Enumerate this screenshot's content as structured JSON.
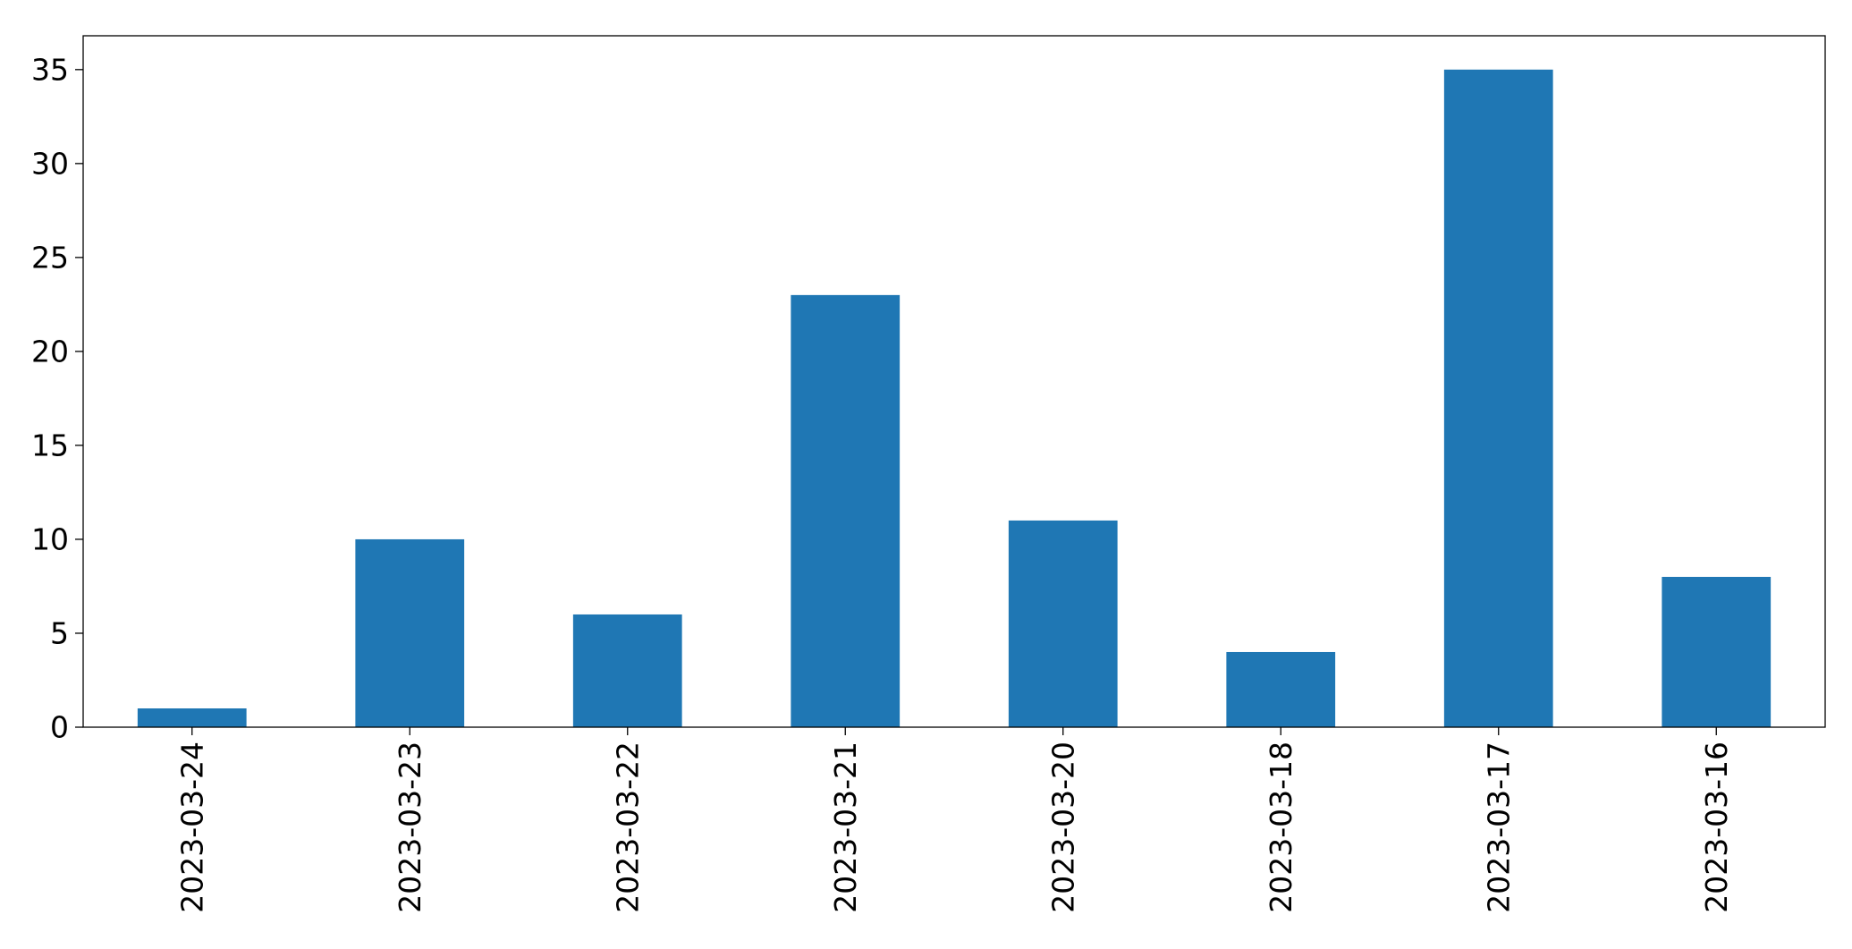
{
  "chart_data": {
    "type": "bar",
    "title": "",
    "xlabel": "",
    "ylabel": "",
    "categories": [
      "2023-03-24",
      "2023-03-23",
      "2023-03-22",
      "2023-03-21",
      "2023-03-20",
      "2023-03-18",
      "2023-03-17",
      "2023-03-16"
    ],
    "values": [
      1,
      10,
      6,
      23,
      11,
      4,
      35,
      8
    ],
    "ylim": [
      0,
      36.8
    ],
    "yticks": [
      0,
      5,
      10,
      15,
      20,
      25,
      30,
      35
    ],
    "ytick_labels": [
      "0",
      "5",
      "10",
      "15",
      "20",
      "25",
      "30",
      "35"
    ],
    "grid": false,
    "legend": "none",
    "bar_color": "#1f77b4"
  }
}
